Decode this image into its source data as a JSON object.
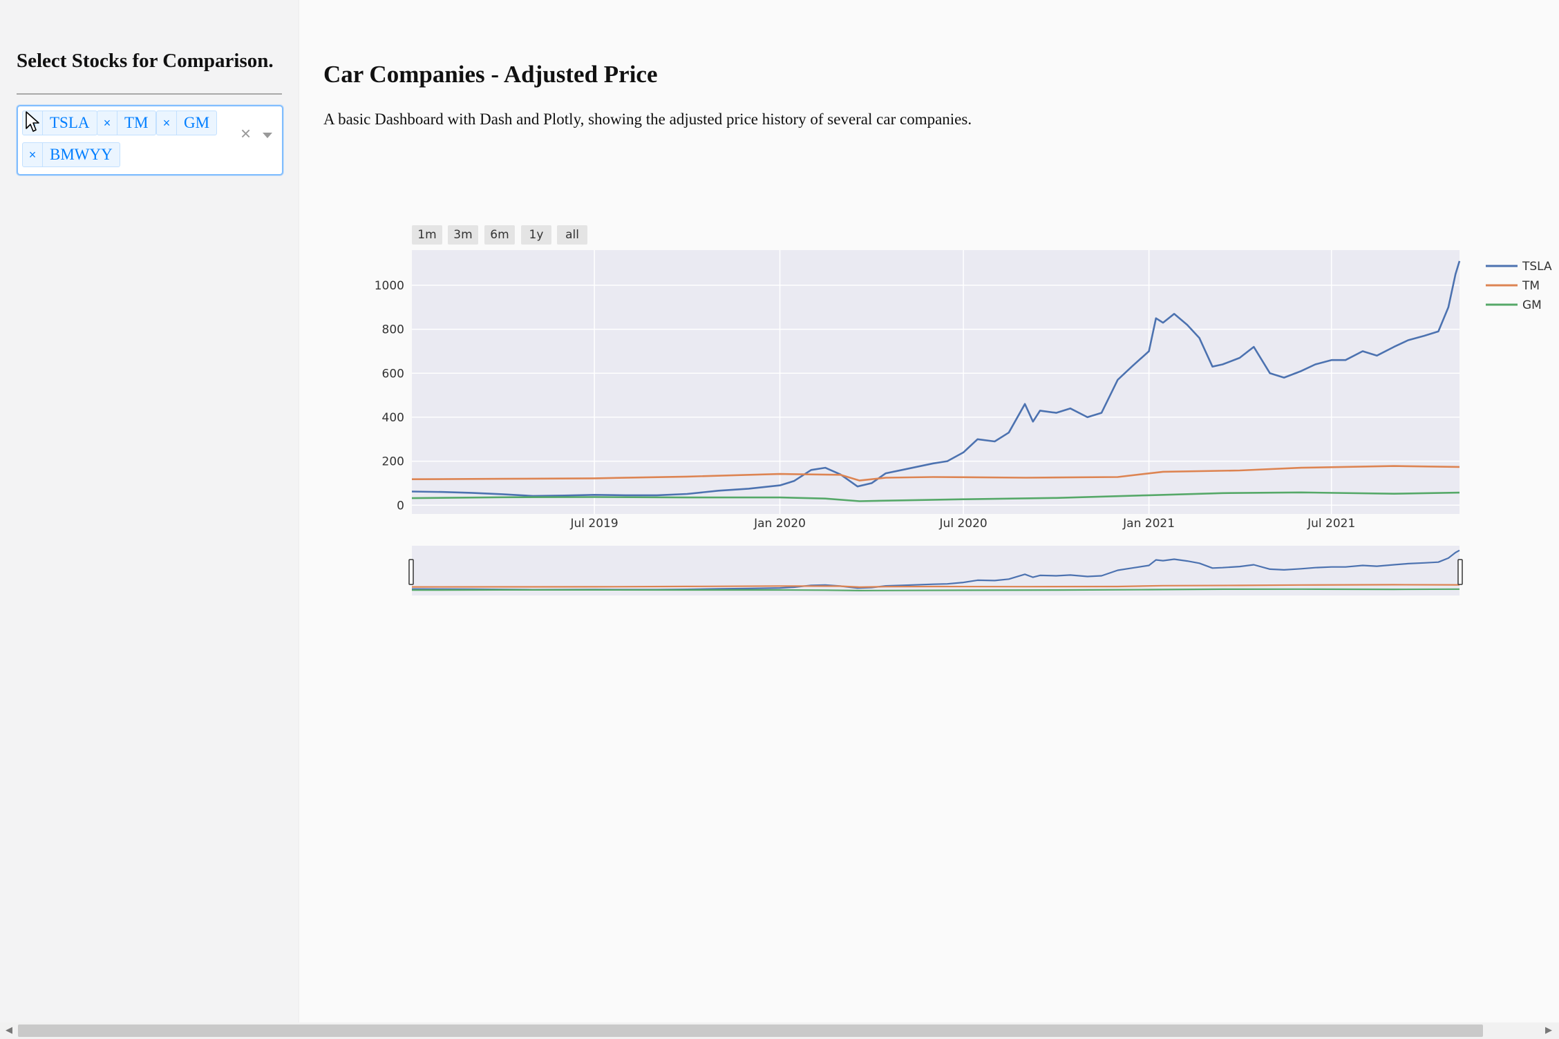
{
  "sidebar": {
    "title": "Select Stocks for Comparison.",
    "selected_stocks": [
      "TSLA",
      "TM",
      "GM",
      "BMWYY"
    ],
    "remove_symbol": "×",
    "clear_symbol": "×"
  },
  "main": {
    "title": "Car Companies - Adjusted Price",
    "description": "A basic Dashboard with Dash and Plotly, showing the adjusted price history of several car companies."
  },
  "range_buttons": [
    "1m",
    "3m",
    "6m",
    "1y",
    "all"
  ],
  "colors": {
    "TSLA": "#4c72b0",
    "TM": "#dd8452",
    "GM": "#55a868",
    "plot_bg": "#eaeaf2",
    "accent": "#007eff"
  },
  "chart_data": {
    "type": "line",
    "title": "",
    "xlabel": "",
    "ylabel": "",
    "x_ticks": [
      "Jul 2019",
      "Jan 2020",
      "Jul 2020",
      "Jan 2021",
      "Jul 2021"
    ],
    "x_range": [
      "2019-01-01",
      "2021-11-05"
    ],
    "y_ticks": [
      0,
      200,
      400,
      600,
      800,
      1000
    ],
    "ylim": [
      -40,
      1160
    ],
    "grid": true,
    "legend_position": "top-right",
    "range_slider": true,
    "series": [
      {
        "name": "TSLA",
        "x": [
          "2019-01-01",
          "2019-02-01",
          "2019-03-01",
          "2019-04-01",
          "2019-05-01",
          "2019-06-01",
          "2019-07-01",
          "2019-08-01",
          "2019-09-01",
          "2019-10-01",
          "2019-11-01",
          "2019-12-01",
          "2020-01-01",
          "2020-01-15",
          "2020-02-01",
          "2020-02-15",
          "2020-03-01",
          "2020-03-18",
          "2020-04-01",
          "2020-04-15",
          "2020-05-01",
          "2020-06-01",
          "2020-06-15",
          "2020-07-01",
          "2020-07-15",
          "2020-08-01",
          "2020-08-15",
          "2020-08-31",
          "2020-09-08",
          "2020-09-15",
          "2020-10-01",
          "2020-10-15",
          "2020-11-01",
          "2020-11-15",
          "2020-12-01",
          "2020-12-15",
          "2021-01-01",
          "2021-01-08",
          "2021-01-15",
          "2021-01-26",
          "2021-02-08",
          "2021-02-20",
          "2021-03-05",
          "2021-03-15",
          "2021-04-01",
          "2021-04-15",
          "2021-05-01",
          "2021-05-15",
          "2021-06-01",
          "2021-06-15",
          "2021-07-01",
          "2021-07-15",
          "2021-08-01",
          "2021-08-15",
          "2021-09-01",
          "2021-09-15",
          "2021-10-01",
          "2021-10-15",
          "2021-10-25",
          "2021-11-01",
          "2021-11-05"
        ],
        "values": [
          62,
          60,
          56,
          50,
          42,
          44,
          47,
          45,
          45,
          51,
          66,
          75,
          90,
          110,
          160,
          170,
          140,
          85,
          100,
          145,
          160,
          190,
          200,
          240,
          300,
          290,
          330,
          460,
          380,
          430,
          420,
          440,
          400,
          420,
          570,
          630,
          700,
          850,
          830,
          870,
          820,
          760,
          630,
          640,
          670,
          720,
          600,
          580,
          610,
          640,
          660,
          660,
          700,
          680,
          720,
          750,
          770,
          790,
          900,
          1050,
          1110
        ]
      },
      {
        "name": "TM",
        "x": [
          "2019-01-01",
          "2019-04-01",
          "2019-07-01",
          "2019-10-01",
          "2020-01-01",
          "2020-03-01",
          "2020-03-20",
          "2020-04-15",
          "2020-06-01",
          "2020-09-01",
          "2020-12-01",
          "2021-01-15",
          "2021-04-01",
          "2021-06-01",
          "2021-09-01",
          "2021-11-05"
        ],
        "values": [
          118,
          120,
          122,
          130,
          142,
          138,
          112,
          125,
          128,
          125,
          128,
          152,
          158,
          170,
          178,
          174
        ]
      },
      {
        "name": "GM",
        "x": [
          "2019-01-01",
          "2019-04-01",
          "2019-07-01",
          "2019-10-01",
          "2020-01-01",
          "2020-02-15",
          "2020-03-20",
          "2020-05-01",
          "2020-07-01",
          "2020-10-01",
          "2021-01-01",
          "2021-03-15",
          "2021-06-01",
          "2021-09-01",
          "2021-11-05"
        ],
        "values": [
          32,
          36,
          37,
          35,
          35,
          30,
          18,
          22,
          27,
          33,
          45,
          55,
          58,
          52,
          57
        ]
      }
    ]
  }
}
